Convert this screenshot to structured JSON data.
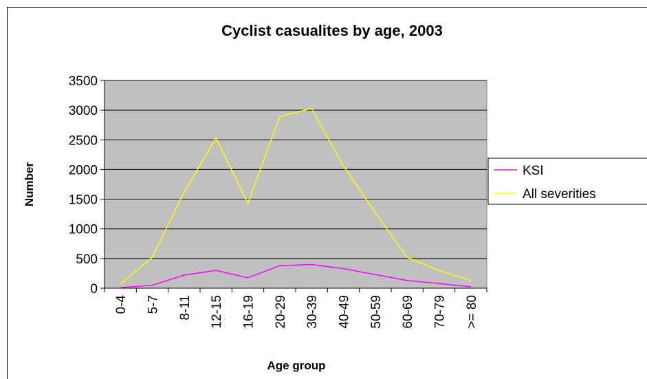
{
  "chart_data": {
    "type": "line",
    "title": "Cyclist casualites by age, 2003",
    "x_label": "Age group",
    "y_label": "Number",
    "categories": [
      "0-4",
      "5-7",
      "8-11",
      "12-15",
      "16-19",
      "20-29",
      "30-39",
      "40-49",
      "50-59",
      "60-69",
      "70-79",
      ">= 80"
    ],
    "series": [
      {
        "name": "KSI",
        "color": "#ff00ff",
        "values": [
          10,
          50,
          220,
          300,
          175,
          380,
          400,
          330,
          230,
          130,
          80,
          25
        ]
      },
      {
        "name": "All severities",
        "color": "#ffff00",
        "values": [
          70,
          520,
          1620,
          2530,
          1430,
          2890,
          3030,
          2060,
          1270,
          520,
          300,
          130
        ]
      }
    ],
    "ylim": [
      0,
      3500
    ],
    "yticks": [
      0,
      500,
      1000,
      1500,
      2000,
      2500,
      3000,
      3500
    ],
    "grid": true,
    "legend": "right"
  }
}
